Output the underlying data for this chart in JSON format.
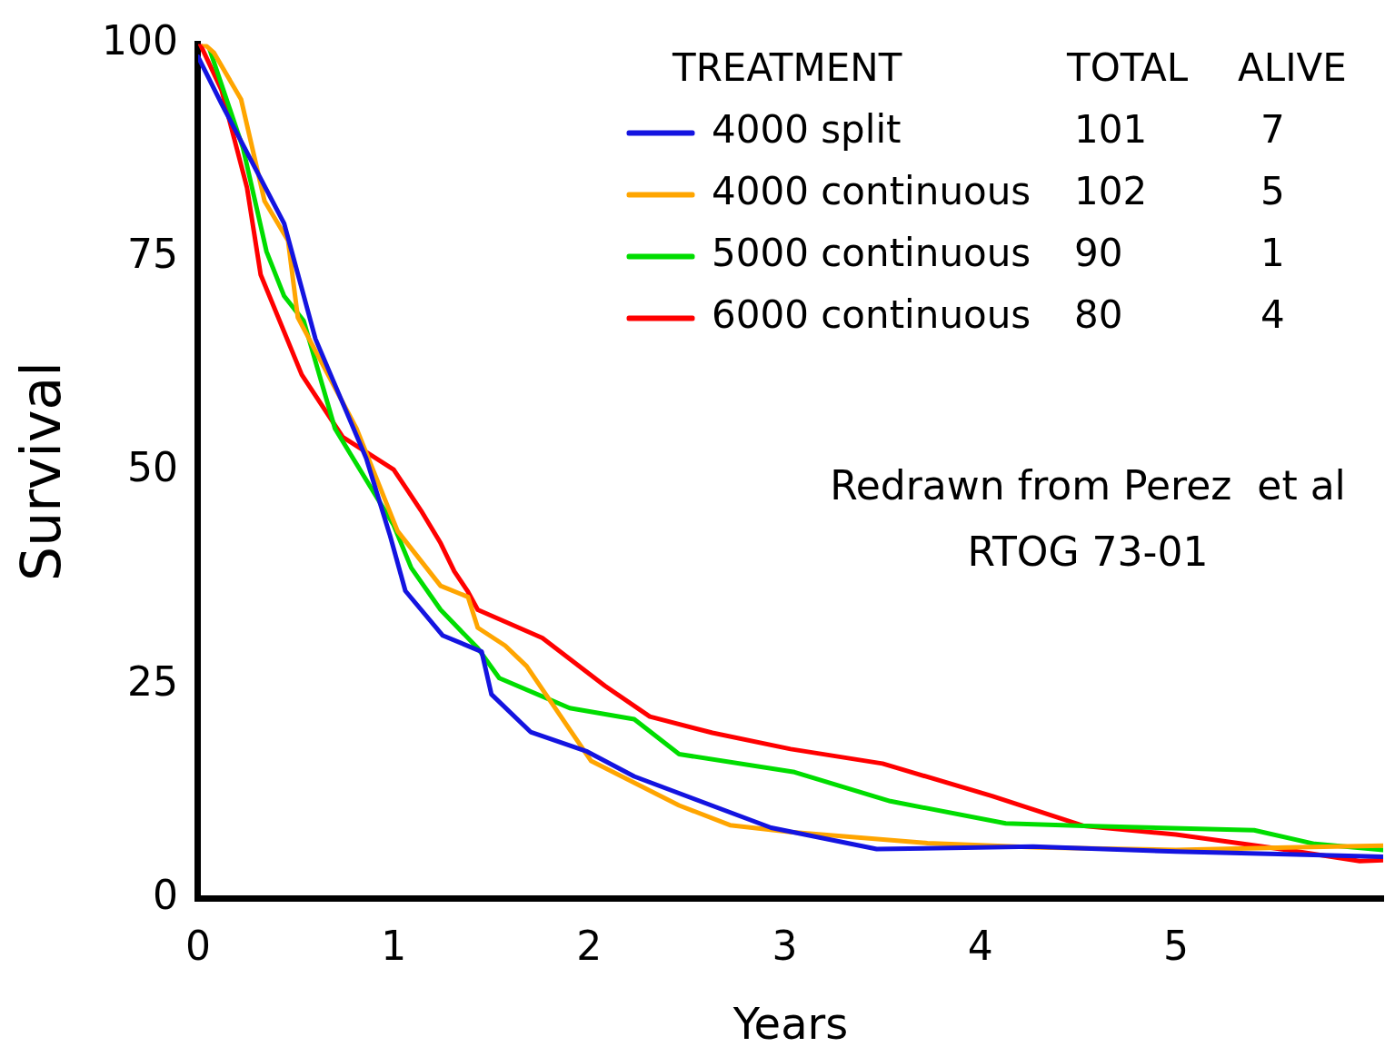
{
  "chart_data": {
    "type": "line",
    "xlabel": "Years",
    "ylabel": "Survival",
    "legend": "top right",
    "legend_title": "TREATMENT",
    "grid": false,
    "marker": "none",
    "line_style": "solid",
    "xlim": [
      0,
      6.06
    ],
    "xticks": [
      0,
      1,
      2,
      3,
      4,
      5
    ],
    "ylim": [
      0,
      100
    ],
    "yticks": [
      0,
      25,
      50,
      75,
      100
    ],
    "annotations": [
      "TOTAL",
      "ALIVE",
      "101",
      "7",
      "102",
      "5",
      "90",
      "1",
      "80",
      "4",
      "Redrawn from Perez  et al",
      "RTOG 73-01"
    ],
    "series": [
      {
        "name": "4000 split",
        "color": "#1414e0",
        "x": [
          0,
          0.12,
          0.44,
          0.6,
          0.86,
          0.98,
          1.06,
          1.25,
          1.45,
          1.5,
          1.7,
          1.99,
          2.23,
          2.93,
          3.47,
          4.27,
          5,
          5.57,
          6.06
        ],
        "values": [
          98.5,
          93,
          79,
          65.5,
          51.5,
          42.6,
          36,
          30.8,
          28.9,
          23.9,
          19.5,
          17.2,
          14.3,
          8.3,
          5.8,
          6.1,
          5.5,
          5.2,
          4.9
        ]
      },
      {
        "name": "4000 continuous",
        "color": "#ffa500",
        "x": [
          0.03,
          0.08,
          0.22,
          0.34,
          0.46,
          0.51,
          0.81,
          1.02,
          1.24,
          1.38,
          1.43,
          1.57,
          1.68,
          2.01,
          2.46,
          2.72,
          3.03,
          3.73,
          4.3,
          5,
          5.57,
          6.06
        ],
        "values": [
          100,
          99,
          93.5,
          81.6,
          77,
          68,
          55,
          43,
          36.6,
          35.3,
          31.7,
          29.6,
          27.2,
          16.1,
          10.9,
          8.6,
          7.8,
          6.5,
          6,
          5.7,
          6,
          6.2
        ]
      },
      {
        "name": "5000 continuous",
        "color": "#00dd00",
        "x": [
          0.06,
          0.23,
          0.35,
          0.44,
          0.54,
          0.7,
          1,
          1.09,
          1.24,
          1.43,
          1.54,
          1.9,
          2.23,
          2.46,
          3.05,
          3.54,
          4.13,
          4.53,
          5.4,
          5.71,
          6.06
        ],
        "values": [
          99.3,
          87.8,
          75.7,
          70.5,
          67.6,
          55,
          43.7,
          38.7,
          33.8,
          29.3,
          25.8,
          22.3,
          21,
          16.9,
          14.8,
          11.4,
          8.8,
          8.5,
          8,
          6.4,
          5.7
        ]
      },
      {
        "name": "6000 continuous",
        "color": "#ff0000",
        "x": [
          0.01,
          0.12,
          0.25,
          0.32,
          0.53,
          0.74,
          1,
          1.07,
          1.14,
          1.24,
          1.31,
          1.38,
          1.43,
          1.76,
          2.08,
          2.31,
          2.63,
          3.03,
          3.5,
          4.06,
          4.53,
          5,
          5.57,
          5.94,
          6.06
        ],
        "values": [
          100,
          94.6,
          83.2,
          73,
          61.3,
          54,
          50.2,
          47.8,
          45.4,
          41.6,
          38.3,
          35.9,
          33.8,
          30.5,
          24.9,
          21.3,
          19.4,
          17.5,
          15.8,
          12,
          8.5,
          7.5,
          5.7,
          4.4,
          4.5
        ]
      }
    ]
  }
}
